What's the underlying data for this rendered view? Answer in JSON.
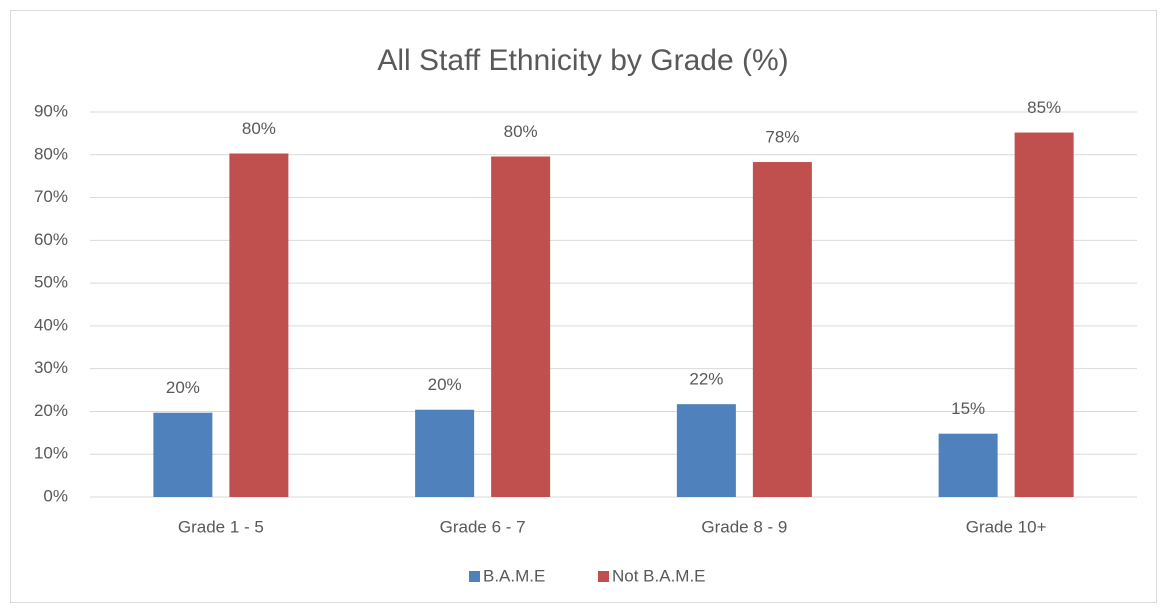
{
  "chart_data": {
    "type": "bar",
    "title": "All Staff Ethnicity by Grade (%)",
    "categories": [
      "Grade 1 - 5",
      "Grade 6 - 7",
      "Grade 8 - 9",
      "Grade 10+"
    ],
    "series": [
      {
        "name": "B.A.M.E",
        "color": "#4f81bd",
        "values": [
          19.7,
          20.4,
          21.7,
          14.8
        ],
        "value_labels": [
          "20%",
          "20%",
          "22%",
          "15%"
        ]
      },
      {
        "name": "Not B.A.M.E",
        "color": "#c0504d",
        "values": [
          80.3,
          79.6,
          78.3,
          85.2
        ],
        "value_labels": [
          "80%",
          "80%",
          "78%",
          "85%"
        ]
      }
    ],
    "ylim": [
      0,
      90
    ],
    "yticks": [
      {
        "value": 0,
        "label": "0%"
      },
      {
        "value": 10,
        "label": "10%"
      },
      {
        "value": 20,
        "label": "20%"
      },
      {
        "value": 30,
        "label": "30%"
      },
      {
        "value": 40,
        "label": "40%"
      },
      {
        "value": 50,
        "label": "50%"
      },
      {
        "value": 60,
        "label": "60%"
      },
      {
        "value": 70,
        "label": "70%"
      },
      {
        "value": 80,
        "label": "80%"
      },
      {
        "value": 90,
        "label": "90%"
      }
    ],
    "grid": true,
    "legend": "bottom"
  }
}
